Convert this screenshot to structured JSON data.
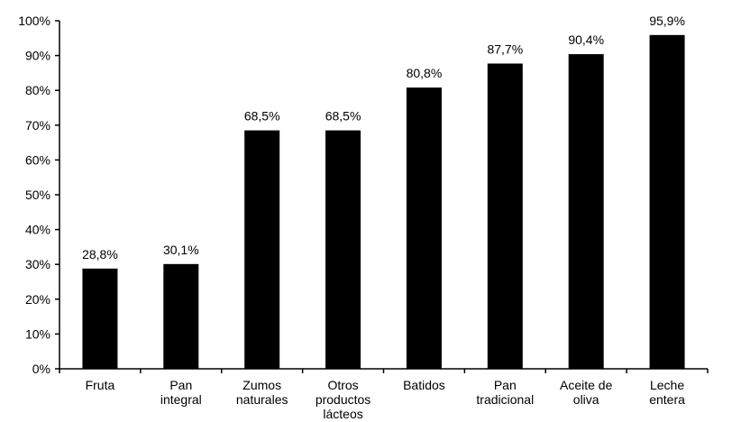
{
  "chart_data": {
    "type": "bar",
    "categories": [
      "Fruta",
      "Pan integral",
      "Zumos naturales",
      "Otros productos lácteos",
      "Batidos",
      "Pan tradicional",
      "Aceite de oliva",
      "Leche entera"
    ],
    "category_lines": [
      [
        "Fruta"
      ],
      [
        "Pan",
        "integral"
      ],
      [
        "Zumos",
        "naturales"
      ],
      [
        "Otros",
        "productos",
        "lácteos"
      ],
      [
        "Batidos"
      ],
      [
        "Pan",
        "tradicional"
      ],
      [
        "Aceite de",
        "oliva"
      ],
      [
        "Leche",
        "entera"
      ]
    ],
    "values": [
      28.8,
      30.1,
      68.5,
      68.5,
      80.8,
      87.7,
      90.4,
      95.9
    ],
    "value_labels": [
      "28,8%",
      "30,1%",
      "68,5%",
      "68,5%",
      "80,8%",
      "87,7%",
      "90,4%",
      "95,9%"
    ],
    "yticks": [
      0,
      10,
      20,
      30,
      40,
      50,
      60,
      70,
      80,
      90,
      100
    ],
    "ytick_labels": [
      "0%",
      "10%",
      "20%",
      "30%",
      "40%",
      "50%",
      "60%",
      "70%",
      "80%",
      "90%",
      "100%"
    ],
    "ylim": [
      0,
      100
    ],
    "title": "",
    "xlabel": "",
    "ylabel": "",
    "grid": false,
    "bar_color": "#000000",
    "axis_color": "#000000"
  }
}
